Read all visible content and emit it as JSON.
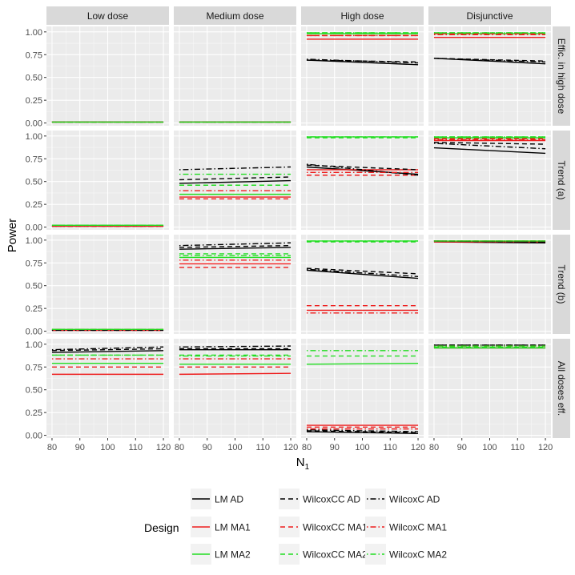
{
  "chart_data": {
    "type": "line",
    "ylabel": "Power",
    "xlabel": "N",
    "xlabel_sub": "1",
    "xlim": [
      78,
      122
    ],
    "ylim": [
      -0.03,
      1.06
    ],
    "x_ticks": [
      80,
      90,
      100,
      110,
      120
    ],
    "x_tick_labels": [
      "80",
      "90",
      "100",
      "110",
      "120"
    ],
    "y_ticks": [
      0,
      0.25,
      0.5,
      0.75,
      1.0
    ],
    "y_tick_labels": [
      "0.00",
      "0.25",
      "0.50",
      "0.75",
      "1.00"
    ],
    "x": [
      80,
      120
    ],
    "columns": [
      "Low dose",
      "Medium dose",
      "High dose",
      "Disjunctive"
    ],
    "rows": [
      "Effic. in high dose",
      "Trend (a)",
      "Trend (b)",
      "All doses eff."
    ],
    "legend": {
      "title": "Design",
      "position": "bottom",
      "entries": [
        {
          "key": "lm_ad",
          "label": "LM AD"
        },
        {
          "key": "lm_ma1",
          "label": "LM MA1"
        },
        {
          "key": "lm_ma2",
          "label": "LM MA2"
        },
        {
          "key": "wcc_ad",
          "label": "WilcoxCC AD"
        },
        {
          "key": "wcc_ma1",
          "label": "WilcoxCC MA1"
        },
        {
          "key": "wcc_ma2",
          "label": "WilcoxCC MA2"
        },
        {
          "key": "wc_ad",
          "label": "WilcoxC AD"
        },
        {
          "key": "wc_ma1",
          "label": "WilcoxC MA1"
        },
        {
          "key": "wc_ma2",
          "label": "WilcoxC MA2"
        }
      ]
    },
    "series_styles": {
      "lm_ad": {
        "color": "#000000",
        "dash": "solid"
      },
      "lm_ma1": {
        "color": "#ee1c1c",
        "dash": "solid"
      },
      "lm_ma2": {
        "color": "#22dd22",
        "dash": "solid"
      },
      "wcc_ad": {
        "color": "#000000",
        "dash": "dashed"
      },
      "wcc_ma1": {
        "color": "#ee1c1c",
        "dash": "dashed"
      },
      "wcc_ma2": {
        "color": "#22dd22",
        "dash": "dashed"
      },
      "wc_ad": {
        "color": "#000000",
        "dash": "dotdash"
      },
      "wc_ma1": {
        "color": "#ee1c1c",
        "dash": "dotdash"
      },
      "wc_ma2": {
        "color": "#22dd22",
        "dash": "dotdash"
      }
    },
    "panels": [
      [
        {
          "lm_ad": [
            0.01,
            0.01
          ],
          "lm_ma1": [
            0.01,
            0.01
          ],
          "lm_ma2": [
            0.01,
            0.01
          ],
          "wcc_ad": [
            0.01,
            0.01
          ],
          "wcc_ma1": [
            0.01,
            0.01
          ],
          "wcc_ma2": [
            0.01,
            0.01
          ],
          "wc_ad": [
            0.01,
            0.01
          ],
          "wc_ma1": [
            0.01,
            0.01
          ],
          "wc_ma2": [
            0.01,
            0.01
          ]
        },
        {
          "lm_ad": [
            0.01,
            0.01
          ],
          "lm_ma1": [
            0.01,
            0.01
          ],
          "lm_ma2": [
            0.01,
            0.01
          ],
          "wcc_ad": [
            0.01,
            0.01
          ],
          "wcc_ma1": [
            0.01,
            0.01
          ],
          "wcc_ma2": [
            0.01,
            0.01
          ],
          "wc_ad": [
            0.01,
            0.01
          ],
          "wc_ma1": [
            0.01,
            0.01
          ],
          "wc_ma2": [
            0.01,
            0.01
          ]
        },
        {
          "lm_ad": [
            0.69,
            0.64
          ],
          "lm_ma1": [
            0.92,
            0.92
          ],
          "lm_ma2": [
            0.98,
            0.98
          ],
          "wcc_ad": [
            0.69,
            0.67
          ],
          "wcc_ma1": [
            0.96,
            0.96
          ],
          "wcc_ma2": [
            0.99,
            0.99
          ],
          "wc_ad": [
            0.7,
            0.66
          ],
          "wc_ma1": [
            0.96,
            0.96
          ],
          "wc_ma2": [
            0.99,
            0.99
          ]
        },
        {
          "lm_ad": [
            0.71,
            0.65
          ],
          "lm_ma1": [
            0.94,
            0.94
          ],
          "lm_ma2": [
            0.98,
            0.98
          ],
          "wcc_ad": [
            0.71,
            0.68
          ],
          "wcc_ma1": [
            0.98,
            0.98
          ],
          "wcc_ma2": [
            0.99,
            0.99
          ],
          "wc_ad": [
            0.71,
            0.67
          ],
          "wc_ma1": [
            0.97,
            0.97
          ],
          "wc_ma2": [
            0.99,
            0.99
          ]
        }
      ],
      [
        {
          "lm_ad": [
            0.01,
            0.01
          ],
          "lm_ma1": [
            0.01,
            0.01
          ],
          "lm_ma2": [
            0.02,
            0.02
          ],
          "wcc_ad": [
            0.01,
            0.01
          ],
          "wcc_ma1": [
            0.01,
            0.01
          ],
          "wcc_ma2": [
            0.02,
            0.02
          ],
          "wc_ad": [
            0.01,
            0.01
          ],
          "wc_ma1": [
            0.01,
            0.01
          ],
          "wc_ma2": [
            0.02,
            0.02
          ]
        },
        {
          "lm_ad": [
            0.48,
            0.51
          ],
          "lm_ma1": [
            0.33,
            0.33
          ],
          "lm_ma2": [
            0.36,
            0.36
          ],
          "wcc_ad": [
            0.52,
            0.55
          ],
          "wcc_ma1": [
            0.31,
            0.31
          ],
          "wcc_ma2": [
            0.46,
            0.46
          ],
          "wc_ad": [
            0.63,
            0.66
          ],
          "wc_ma1": [
            0.4,
            0.4
          ],
          "wc_ma2": [
            0.58,
            0.58
          ]
        },
        {
          "lm_ad": [
            0.66,
            0.58
          ],
          "lm_ma1": [
            0.63,
            0.63
          ],
          "lm_ma2": [
            0.99,
            0.99
          ],
          "wcc_ad": [
            0.68,
            0.63
          ],
          "wcc_ma1": [
            0.57,
            0.57
          ],
          "wcc_ma2": [
            0.98,
            0.98
          ],
          "wc_ad": [
            0.69,
            0.57
          ],
          "wc_ma1": [
            0.6,
            0.6
          ],
          "wc_ma2": [
            0.99,
            0.99
          ]
        },
        {
          "lm_ad": [
            0.87,
            0.81
          ],
          "lm_ma1": [
            0.95,
            0.95
          ],
          "lm_ma2": [
            0.98,
            0.98
          ],
          "wcc_ad": [
            0.93,
            0.91
          ],
          "wcc_ma1": [
            0.97,
            0.97
          ],
          "wcc_ma2": [
            0.99,
            0.99
          ],
          "wc_ad": [
            0.92,
            0.86
          ],
          "wc_ma1": [
            0.96,
            0.96
          ],
          "wc_ma2": [
            0.99,
            0.99
          ]
        }
      ],
      [
        {
          "lm_ad": [
            0.01,
            0.01
          ],
          "lm_ma1": [
            0.01,
            0.01
          ],
          "lm_ma2": [
            0.02,
            0.02
          ],
          "wcc_ad": [
            0.01,
            0.01
          ],
          "wcc_ma1": [
            0.01,
            0.01
          ],
          "wcc_ma2": [
            0.02,
            0.02
          ],
          "wc_ad": [
            0.01,
            0.01
          ],
          "wc_ma1": [
            0.02,
            0.02
          ],
          "wc_ma2": [
            0.02,
            0.02
          ]
        },
        {
          "lm_ad": [
            0.9,
            0.92
          ],
          "lm_ma1": [
            0.74,
            0.74
          ],
          "lm_ma2": [
            0.81,
            0.81
          ],
          "wcc_ad": [
            0.92,
            0.94
          ],
          "wcc_ma1": [
            0.7,
            0.7
          ],
          "wcc_ma2": [
            0.85,
            0.85
          ],
          "wc_ad": [
            0.94,
            0.97
          ],
          "wc_ma1": [
            0.78,
            0.78
          ],
          "wc_ma2": [
            0.83,
            0.83
          ]
        },
        {
          "lm_ad": [
            0.67,
            0.58
          ],
          "lm_ma1": [
            0.23,
            0.23
          ],
          "lm_ma2": [
            0.99,
            0.99
          ],
          "wcc_ad": [
            0.69,
            0.63
          ],
          "wcc_ma1": [
            0.28,
            0.28
          ],
          "wcc_ma2": [
            0.98,
            0.98
          ],
          "wc_ad": [
            0.68,
            0.6
          ],
          "wc_ma1": [
            0.2,
            0.2
          ],
          "wc_ma2": [
            0.99,
            0.99
          ]
        },
        {
          "lm_ad": [
            0.98,
            0.97
          ],
          "lm_ma1": [
            0.98,
            0.98
          ],
          "lm_ma2": [
            0.99,
            0.99
          ],
          "wcc_ad": [
            0.99,
            0.98
          ],
          "wcc_ma1": [
            0.99,
            0.99
          ],
          "wcc_ma2": [
            0.99,
            0.99
          ],
          "wc_ad": [
            0.99,
            0.98
          ],
          "wc_ma1": [
            0.99,
            0.99
          ],
          "wc_ma2": [
            0.99,
            0.99
          ]
        }
      ],
      [
        {
          "lm_ad": [
            0.91,
            0.93
          ],
          "lm_ma1": [
            0.67,
            0.67
          ],
          "lm_ma2": [
            0.79,
            0.79
          ],
          "wcc_ad": [
            0.93,
            0.95
          ],
          "wcc_ma1": [
            0.75,
            0.75
          ],
          "wcc_ma2": [
            0.88,
            0.88
          ],
          "wc_ad": [
            0.94,
            0.97
          ],
          "wc_ma1": [
            0.84,
            0.84
          ],
          "wc_ma2": [
            0.88,
            0.88
          ]
        },
        {
          "lm_ad": [
            0.94,
            0.94
          ],
          "lm_ma1": [
            0.67,
            0.68
          ],
          "lm_ma2": [
            0.78,
            0.78
          ],
          "wcc_ad": [
            0.95,
            0.95
          ],
          "wcc_ma1": [
            0.75,
            0.75
          ],
          "wcc_ma2": [
            0.88,
            0.88
          ],
          "wc_ad": [
            0.97,
            0.98
          ],
          "wc_ma1": [
            0.84,
            0.84
          ],
          "wc_ma2": [
            0.87,
            0.87
          ]
        },
        {
          "lm_ad": [
            0.04,
            0.02
          ],
          "lm_ma1": [
            0.11,
            0.11
          ],
          "lm_ma2": [
            0.78,
            0.79
          ],
          "wcc_ad": [
            0.05,
            0.03
          ],
          "wcc_ma1": [
            0.09,
            0.09
          ],
          "wcc_ma2": [
            0.87,
            0.87
          ],
          "wc_ad": [
            0.06,
            0.04
          ],
          "wc_ma1": [
            0.07,
            0.07
          ],
          "wc_ma2": [
            0.93,
            0.93
          ]
        },
        {
          "lm_ad": [
            0.96,
            0.96
          ],
          "lm_ma1": [
            0.96,
            0.96
          ],
          "lm_ma2": [
            0.96,
            0.96
          ],
          "wcc_ad": [
            0.99,
            0.99
          ],
          "wcc_ma1": [
            0.97,
            0.97
          ],
          "wcc_ma2": [
            0.97,
            0.97
          ],
          "wc_ad": [
            0.99,
            0.99
          ],
          "wc_ma1": [
            0.98,
            0.98
          ],
          "wc_ma2": [
            0.98,
            0.98
          ]
        }
      ]
    ]
  }
}
